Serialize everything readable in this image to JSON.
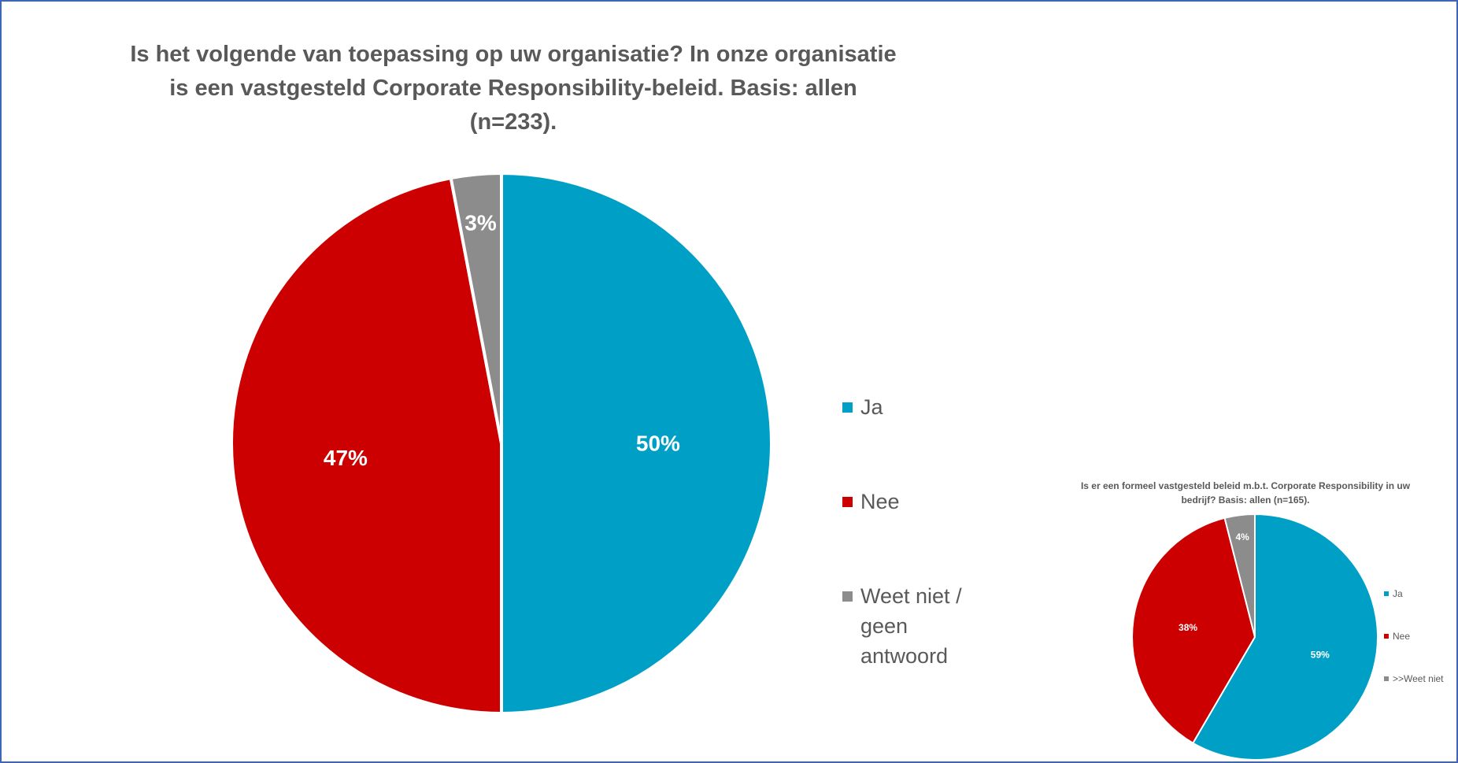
{
  "chart_data": [
    {
      "type": "pie",
      "title": "Is het volgende van toepassing op uw organisatie? In onze organisatie is een vastgesteld Corporate Responsibility-beleid. Basis: allen (n=233).",
      "categories": [
        "Ja",
        "Nee",
        "Weet niet / geen antwoord"
      ],
      "values": [
        50,
        47,
        3
      ],
      "data_labels": [
        "50%",
        "47%",
        "3%"
      ],
      "colors": [
        "#00a0c6",
        "#cc0000",
        "#8c8c8c"
      ],
      "legend_position": "right"
    },
    {
      "type": "pie",
      "title": "Is er een formeel vastgesteld beleid m.b.t. Corporate Responsibility in uw bedrijf? Basis: allen (n=165).",
      "categories": [
        "Ja",
        "Nee",
        ">>Weet niet"
      ],
      "values": [
        59,
        38,
        4
      ],
      "data_labels": [
        "59%",
        "38%",
        "4%"
      ],
      "colors": [
        "#00a0c6",
        "#cc0000",
        "#8c8c8c"
      ],
      "legend_position": "right"
    }
  ]
}
